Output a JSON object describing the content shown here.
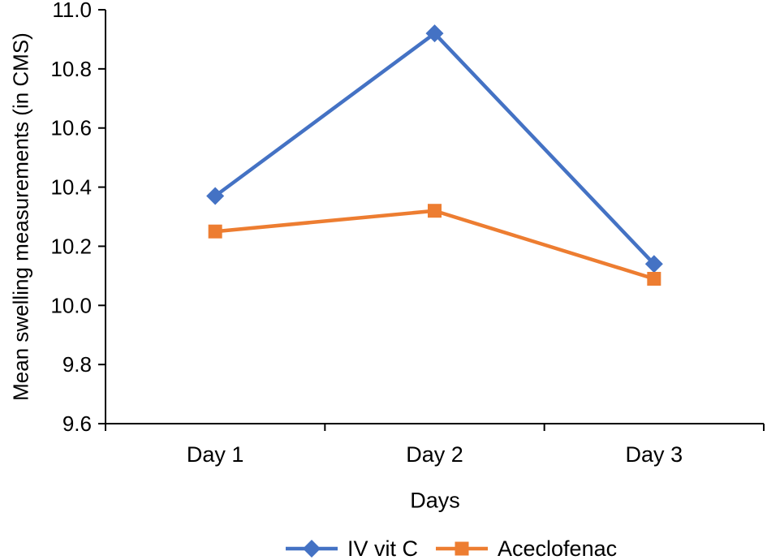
{
  "chart_data": {
    "type": "line",
    "title": "",
    "xlabel": "Days",
    "ylabel": "Mean swelling measurements (in CMS)",
    "categories": [
      "Day 1",
      "Day 2",
      "Day 3"
    ],
    "series": [
      {
        "name": "IV vit C",
        "marker": "diamond",
        "color": "#4472C4",
        "values": [
          10.37,
          10.92,
          10.14
        ]
      },
      {
        "name": "Aceclofenac",
        "marker": "square",
        "color": "#ED7D31",
        "values": [
          10.25,
          10.32,
          10.09
        ]
      }
    ],
    "ylim": [
      9.6,
      11.0
    ],
    "ytick_step": 0.2,
    "ytick_decimals": 1,
    "grid": false,
    "legend_position": "bottom",
    "axis_color": "#000000",
    "text_color": "#000000"
  }
}
